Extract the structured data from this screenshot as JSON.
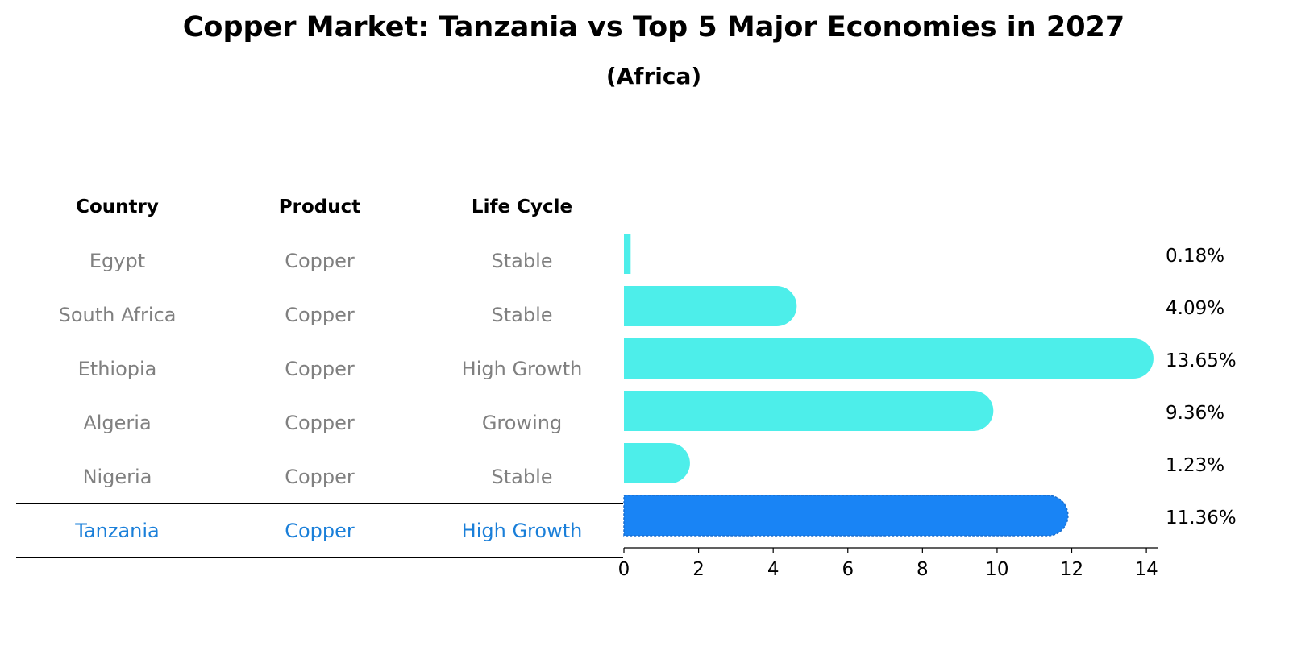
{
  "chart_data": {
    "type": "bar",
    "title": "Copper Market: Tanzania vs Top 5 Major Economies in 2027",
    "subtitle": "(Africa)",
    "table": {
      "headers": [
        "Country",
        "Product",
        "Life Cycle"
      ],
      "rows": [
        [
          "Egypt",
          "Copper",
          "Stable"
        ],
        [
          "South Africa",
          "Copper",
          "Stable"
        ],
        [
          "Ethiopia",
          "Copper",
          "High Growth"
        ],
        [
          "Algeria",
          "Copper",
          "Growing"
        ],
        [
          "Nigeria",
          "Copper",
          "Stable"
        ],
        [
          "Tanzania",
          "Copper",
          "High Growth"
        ]
      ],
      "highlight_row": 5
    },
    "categories": [
      "Egypt",
      "South Africa",
      "Ethiopia",
      "Algeria",
      "Nigeria",
      "Tanzania"
    ],
    "values": [
      0.18,
      4.09,
      13.65,
      9.36,
      1.23,
      11.36
    ],
    "value_labels": [
      "0.18%",
      "4.09%",
      "13.65%",
      "9.36%",
      "1.23%",
      "11.36%"
    ],
    "highlight_index": 5,
    "xlim": [
      0,
      14.3
    ],
    "xticks": [
      0,
      2,
      4,
      6,
      8,
      10,
      12,
      14
    ],
    "xlabel": "",
    "ylabel": "",
    "colors": {
      "default": "#4deeea",
      "highlight": "#1984f5",
      "highlight_text": "#1a7fd9",
      "muted_text": "#808080"
    }
  }
}
